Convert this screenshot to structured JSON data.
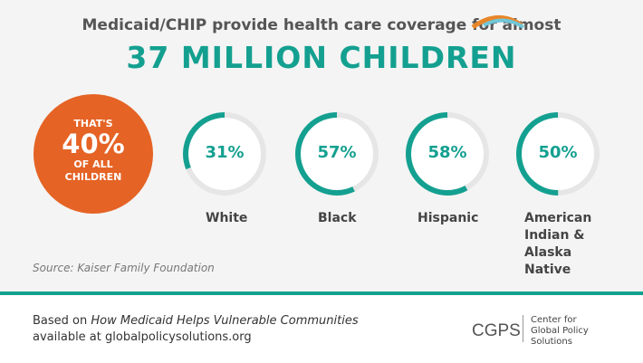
{
  "header": {
    "subtitle": "Medicaid/CHIP provide health care coverage for almost",
    "headline": "37 MILLION CHILDREN"
  },
  "callout": {
    "line1": "THAT'S",
    "value": "40%",
    "line2": "OF ALL",
    "line3": "CHILDREN",
    "color": "#e56325"
  },
  "chart_data": {
    "type": "pie",
    "categories": [
      "White",
      "Black",
      "Hispanic",
      "American Indian & Alaska Native"
    ],
    "values": [
      31,
      57,
      58,
      50
    ],
    "labels": [
      "31%",
      "57%",
      "58%",
      "50%"
    ],
    "unit": "%",
    "colors": {
      "arc": "#14a090",
      "track": "#e6e6e6"
    }
  },
  "source": "Source: Kaiser Family Foundation",
  "footer": {
    "prefix": "Based on ",
    "title": "How Medicaid Helps Vulnerable Communities",
    "line2": "available at globalpolicysolutions.org"
  },
  "logo": {
    "abbr": "CGPS",
    "org_lines": [
      "Center for",
      "Global Policy",
      "Solutions"
    ]
  }
}
